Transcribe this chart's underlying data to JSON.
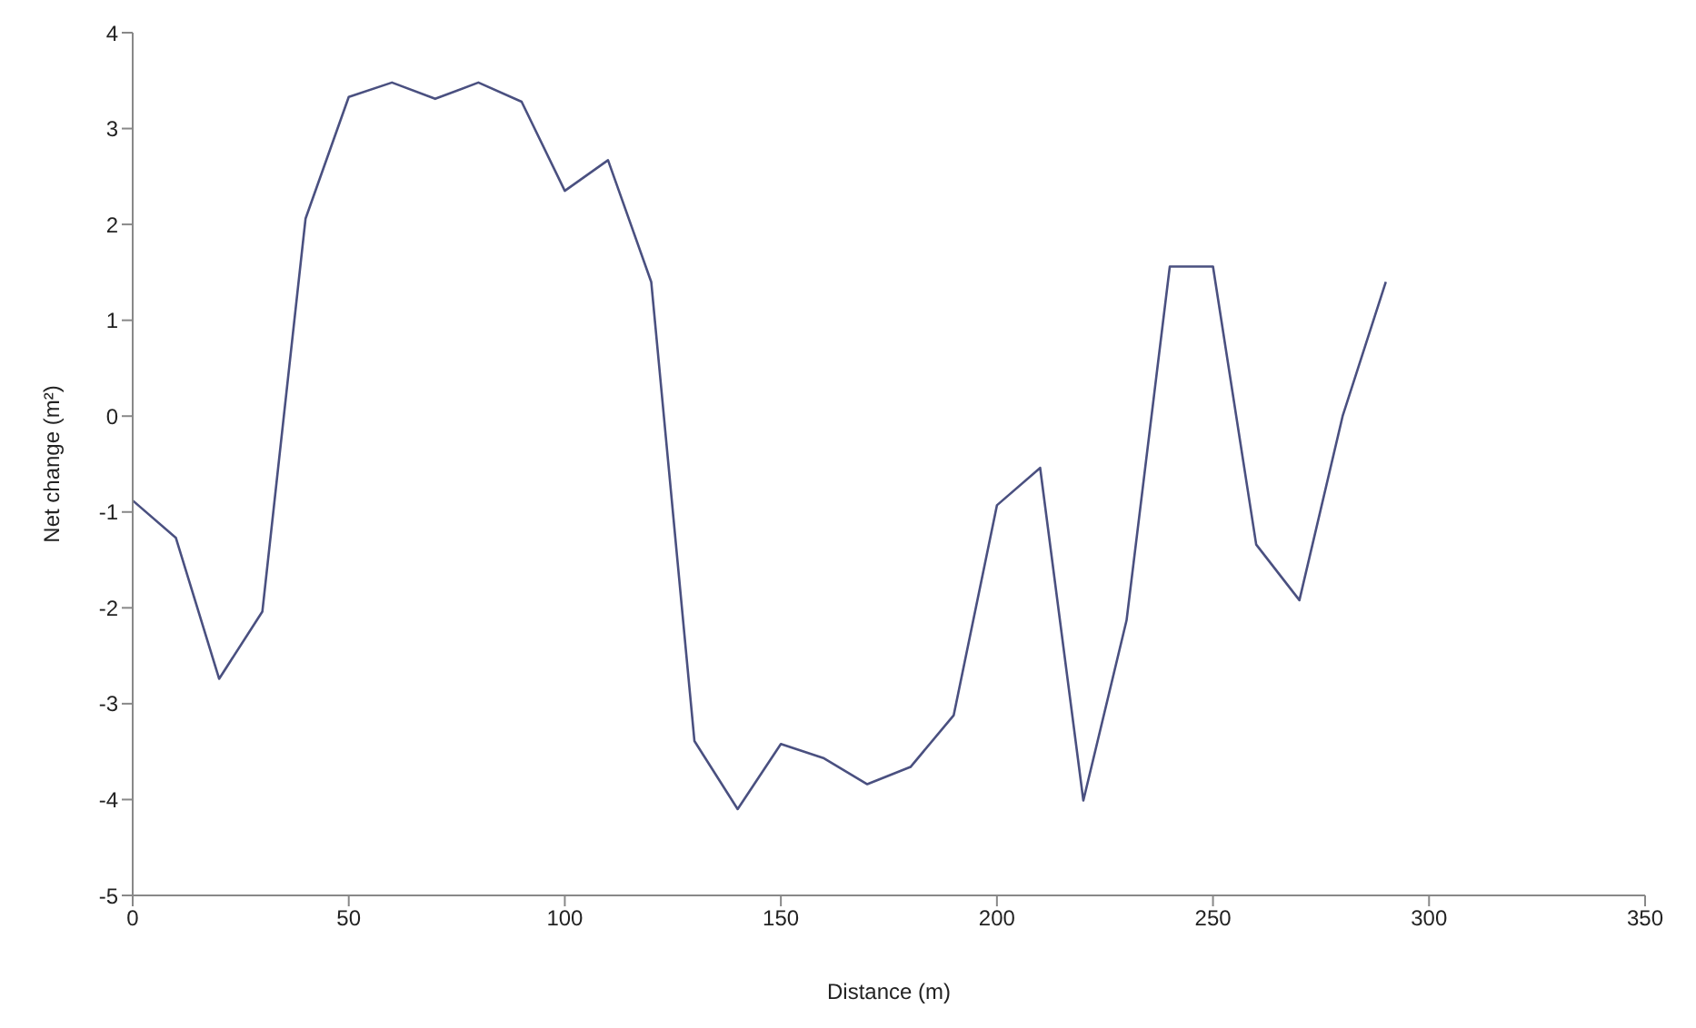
{
  "chart_data": {
    "type": "line",
    "xlabel": "Distance (m)",
    "ylabel": "Net change (m²)",
    "x": [
      0,
      10,
      20,
      30,
      40,
      50,
      60,
      70,
      80,
      90,
      100,
      110,
      120,
      130,
      140,
      150,
      160,
      170,
      180,
      190,
      200,
      210,
      220,
      230,
      240,
      250,
      260,
      270,
      280,
      290
    ],
    "series": [
      {
        "color": "#4a5080",
        "values": [
          -0.88,
          -1.27,
          -2.74,
          -2.04,
          2.06,
          3.33,
          3.48,
          3.31,
          3.48,
          3.28,
          2.35,
          2.67,
          1.4,
          -3.39,
          -4.1,
          -3.42,
          -3.57,
          -3.84,
          -3.66,
          -3.12,
          -0.93,
          -0.54,
          -4.01,
          -2.13,
          1.56,
          1.56,
          -1.34,
          -1.92,
          0,
          1.4
        ]
      }
    ],
    "xlim": [
      0,
      350
    ],
    "xticks": [
      0,
      50,
      100,
      150,
      200,
      250,
      300,
      350
    ],
    "ylim": [
      -5,
      4
    ],
    "yticks": [
      -5,
      -4,
      -3,
      -2,
      -1,
      0,
      1,
      2,
      3,
      4
    ],
    "grid": false,
    "legend": false,
    "marker": "none",
    "line_style": "solid"
  }
}
